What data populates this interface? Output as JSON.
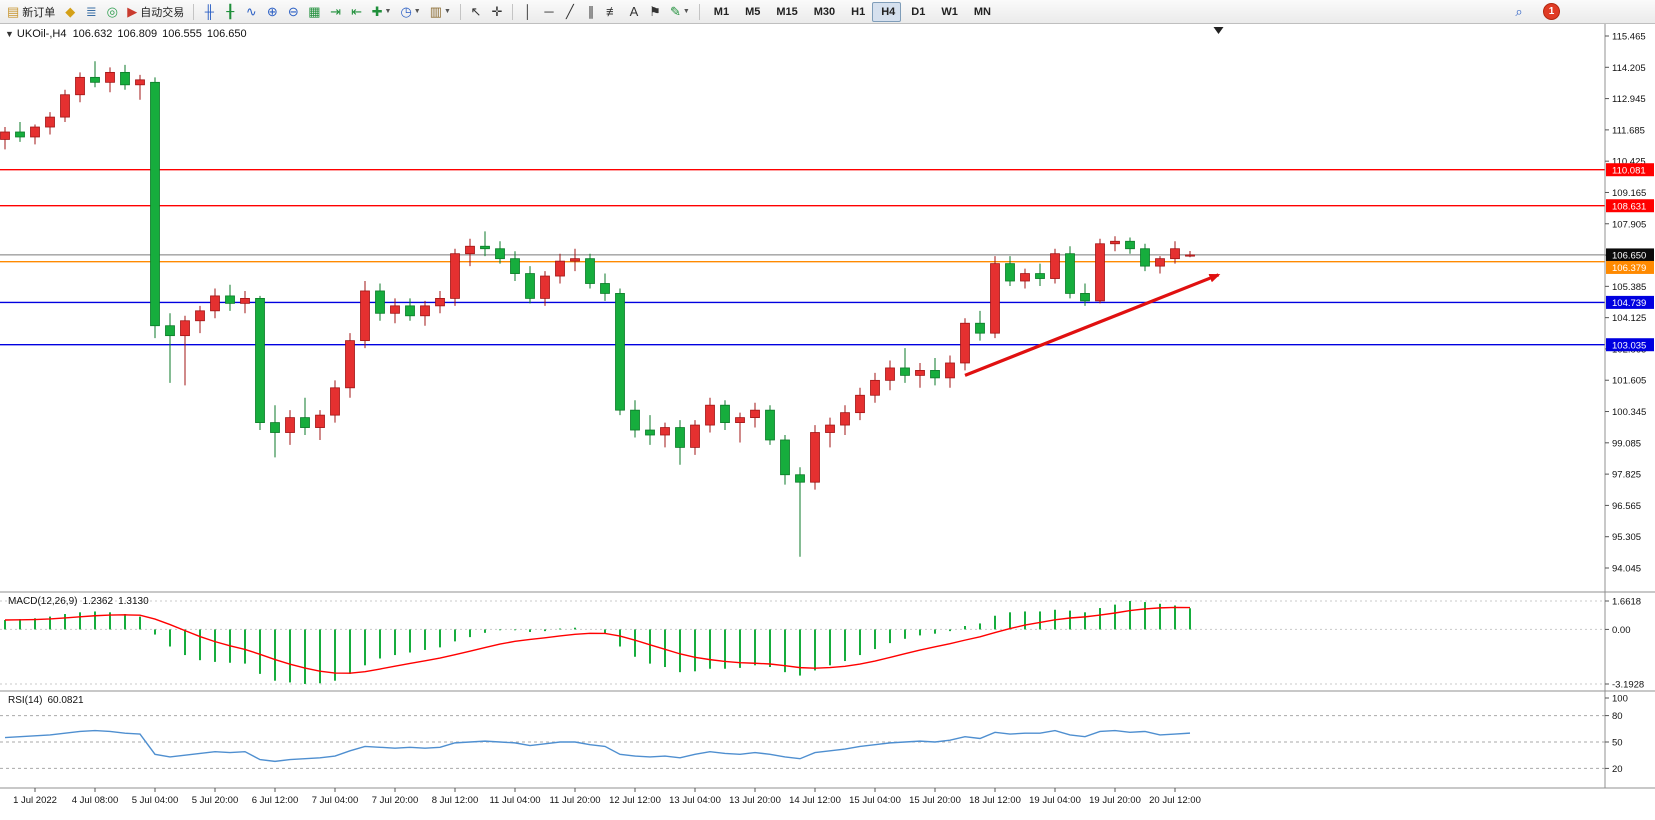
{
  "icons": {
    "one_click_toggle": "▼"
  },
  "toolbar": {
    "items": [
      {
        "name": "new-order-button",
        "glyph": "▤",
        "glyph_color": "#c89632",
        "label": "新订单"
      },
      {
        "name": "metaeditor-button",
        "glyph": "◆",
        "glyph_color": "#d4a017"
      },
      {
        "name": "market-watch-button",
        "glyph": "≣",
        "glyph_color": "#3a6ea5"
      },
      {
        "name": "navigator-button",
        "glyph": "◎",
        "glyph_color": "#2e9e4f"
      },
      {
        "name": "autotrading-button",
        "glyph": "▶",
        "glyph_color": "#c93a2e",
        "label": "自动交易"
      },
      {
        "sep": true
      },
      {
        "name": "bar-chart-button",
        "glyph": "╫",
        "glyph_color": "#2b5fc4"
      },
      {
        "name": "candlestick-chart-button",
        "glyph": "╂",
        "glyph_color": "#1f8f3a"
      },
      {
        "name": "line-chart-button",
        "glyph": "∿",
        "glyph_color": "#2b5fc4"
      },
      {
        "name": "zoom-in-button",
        "glyph": "⊕",
        "glyph_color": "#2b5fc4"
      },
      {
        "name": "zoom-out-button",
        "glyph": "⊖",
        "glyph_color": "#2b5fc4"
      },
      {
        "name": "tile-windows-button",
        "glyph": "▦",
        "glyph_color": "#1f8f3a"
      },
      {
        "name": "auto-scroll-button",
        "glyph": "⇥",
        "glyph_color": "#1f8f3a"
      },
      {
        "name": "chart-shift-button",
        "glyph": "⇤",
        "glyph_color": "#1f8f3a"
      },
      {
        "name": "indicators-button",
        "glyph": "✚",
        "glyph_color": "#1f8f3a",
        "caret": true
      },
      {
        "name": "periods-button",
        "glyph": "◷",
        "glyph_color": "#2b5fc4",
        "caret": true
      },
      {
        "name": "templates-button",
        "glyph": "▥",
        "glyph_color": "#8a6a30",
        "caret": true
      },
      {
        "sep": true
      },
      {
        "name": "cursor-button",
        "glyph": "↖",
        "glyph_color": "#333333"
      },
      {
        "name": "crosshair-button",
        "glyph": "✛",
        "glyph_color": "#333333"
      },
      {
        "sep": true
      },
      {
        "name": "vertical-line-button",
        "glyph": "│",
        "glyph_color": "#333333"
      },
      {
        "name": "horizontal-line-button",
        "glyph": "─",
        "glyph_color": "#333333"
      },
      {
        "name": "trendline-button",
        "glyph": "╱",
        "glyph_color": "#333333"
      },
      {
        "name": "equidistant-channel-button",
        "glyph": "∥",
        "glyph_color": "#333333"
      },
      {
        "name": "fibonacci-button",
        "glyph": "≢",
        "glyph_color": "#333333"
      },
      {
        "name": "text-button",
        "glyph": "A",
        "glyph_color": "#333333"
      },
      {
        "name": "arrows-button",
        "glyph": "⚑",
        "glyph_color": "#333333"
      },
      {
        "name": "draw-objects-button",
        "glyph": "✎",
        "glyph_color": "#1f8f3a",
        "caret": true
      },
      {
        "sep": true
      },
      {
        "name": "timeframe-m1-button",
        "label": "M1",
        "tf": true
      },
      {
        "name": "timeframe-m5-button",
        "label": "M5",
        "tf": true
      },
      {
        "name": "timeframe-m15-button",
        "label": "M15",
        "tf": true
      },
      {
        "name": "timeframe-m30-button",
        "label": "M30",
        "tf": true
      },
      {
        "name": "timeframe-h1-button",
        "label": "H1",
        "tf": true
      },
      {
        "name": "timeframe-h4-button",
        "label": "H4",
        "tf": true,
        "active": true
      },
      {
        "name": "timeframe-d1-button",
        "label": "D1",
        "tf": true
      },
      {
        "name": "timeframe-w1-button",
        "label": "W1",
        "tf": true
      },
      {
        "name": "timeframe-mn-button",
        "label": "MN",
        "tf": true
      }
    ],
    "right_items": [
      {
        "name": "search-button",
        "glyph": "⌕",
        "glyph_color": "#2b5fc4"
      },
      {
        "name": "notifications-button",
        "badge": "1"
      }
    ]
  },
  "chart": {
    "info": {
      "symbol": "UKOil-",
      "period": "H4",
      "open": "106.632",
      "high": "106.809",
      "low": "106.555",
      "close": "106.650"
    },
    "macd_label": {
      "name": "MACD(12,26,9)",
      "main_value": "1.2362",
      "signal_value": "1.3130"
    },
    "rsi_label": {
      "name": "RSI(14)",
      "value": "60.0821"
    }
  },
  "chart_data": [
    {
      "pane": "price",
      "type": "candlestick",
      "symbol": "UKOil-",
      "timeframe": "H4",
      "bull_color": "#e53030",
      "bear_color": "#16ad3d",
      "y_axis": {
        "min": 94.045,
        "max": 115.465,
        "ticks": [
          "115.465",
          "114.205",
          "112.945",
          "111.685",
          "110.425",
          "109.165",
          "107.905",
          "106.645",
          "105.385",
          "104.125",
          "102.865",
          "101.605",
          "100.345",
          "99.085",
          "97.825",
          "96.565",
          "95.305",
          "94.045"
        ]
      },
      "time_labels": {
        "indices": [
          2,
          6,
          10,
          14,
          18,
          22,
          26,
          30,
          34,
          38,
          42,
          46,
          50,
          54,
          58,
          62,
          66,
          70,
          74,
          78
        ],
        "texts": [
          "1 Jul 2022",
          "4 Jul 08:00",
          "5 Jul 04:00",
          "5 Jul 20:00",
          "6 Jul 12:00",
          "7 Jul 04:00",
          "7 Jul 20:00",
          "8 Jul 12:00",
          "11 Jul 04:00",
          "11 Jul 20:00",
          "12 Jul 12:00",
          "13 Jul 04:00",
          "13 Jul 20:00",
          "14 Jul 12:00",
          "15 Jul 04:00",
          "15 Jul 20:00",
          "18 Jul 12:00",
          "19 Jul 04:00",
          "19 Jul 20:00",
          "20 Jul 12:00"
        ]
      },
      "ohlc": [
        [
          111.3,
          111.8,
          110.9,
          111.6
        ],
        [
          111.6,
          112.0,
          111.2,
          111.4
        ],
        [
          111.4,
          111.9,
          111.1,
          111.8
        ],
        [
          111.8,
          112.4,
          111.5,
          112.2
        ],
        [
          112.2,
          113.3,
          112.0,
          113.1
        ],
        [
          113.1,
          114.0,
          112.8,
          113.8
        ],
        [
          113.8,
          114.45,
          113.4,
          113.6
        ],
        [
          113.6,
          114.2,
          113.2,
          114.0
        ],
        [
          114.0,
          114.3,
          113.3,
          113.5
        ],
        [
          113.5,
          113.9,
          112.9,
          113.7
        ],
        [
          113.6,
          113.8,
          103.3,
          103.8
        ],
        [
          103.8,
          104.3,
          101.5,
          103.4
        ],
        [
          103.4,
          104.2,
          101.4,
          104.0
        ],
        [
          104.0,
          104.6,
          103.5,
          104.4
        ],
        [
          104.4,
          105.3,
          104.1,
          105.0
        ],
        [
          105.0,
          105.45,
          104.4,
          104.7
        ],
        [
          104.7,
          105.2,
          104.3,
          104.9
        ],
        [
          104.9,
          105.0,
          99.6,
          99.9
        ],
        [
          99.9,
          100.6,
          98.5,
          99.5
        ],
        [
          99.5,
          100.4,
          99.0,
          100.1
        ],
        [
          100.1,
          100.9,
          99.4,
          99.7
        ],
        [
          99.7,
          100.4,
          99.2,
          100.2
        ],
        [
          100.2,
          101.6,
          99.9,
          101.3
        ],
        [
          101.3,
          103.5,
          100.9,
          103.2
        ],
        [
          103.2,
          105.6,
          102.9,
          105.2
        ],
        [
          105.2,
          105.5,
          104.0,
          104.3
        ],
        [
          104.3,
          104.9,
          103.9,
          104.6
        ],
        [
          104.6,
          104.9,
          104.0,
          104.2
        ],
        [
          104.2,
          104.8,
          103.8,
          104.6
        ],
        [
          104.6,
          105.2,
          104.3,
          104.9
        ],
        [
          104.9,
          106.9,
          104.6,
          106.7
        ],
        [
          106.7,
          107.3,
          106.2,
          107.0
        ],
        [
          107.0,
          107.6,
          106.6,
          106.9
        ],
        [
          106.9,
          107.2,
          106.3,
          106.5
        ],
        [
          106.5,
          106.8,
          105.6,
          105.9
        ],
        [
          105.9,
          106.2,
          104.7,
          104.9
        ],
        [
          104.9,
          106.0,
          104.6,
          105.8
        ],
        [
          105.8,
          106.7,
          105.5,
          106.4
        ],
        [
          106.4,
          106.9,
          106.0,
          106.5
        ],
        [
          106.5,
          106.7,
          105.3,
          105.5
        ],
        [
          105.5,
          105.9,
          104.8,
          105.1
        ],
        [
          105.1,
          105.3,
          100.2,
          100.4
        ],
        [
          100.4,
          100.8,
          99.3,
          99.6
        ],
        [
          99.6,
          100.2,
          99.0,
          99.4
        ],
        [
          99.4,
          99.9,
          98.9,
          99.7
        ],
        [
          99.7,
          100.0,
          98.2,
          98.9
        ],
        [
          98.9,
          100.0,
          98.6,
          99.8
        ],
        [
          99.8,
          100.9,
          99.5,
          100.6
        ],
        [
          100.6,
          100.8,
          99.6,
          99.9
        ],
        [
          99.9,
          100.3,
          99.1,
          100.1
        ],
        [
          100.1,
          100.7,
          99.7,
          100.4
        ],
        [
          100.4,
          100.6,
          99.0,
          99.2
        ],
        [
          99.2,
          99.4,
          97.4,
          97.8
        ],
        [
          97.8,
          98.1,
          94.5,
          97.5
        ],
        [
          97.5,
          99.8,
          97.2,
          99.5
        ],
        [
          99.5,
          100.1,
          98.9,
          99.8
        ],
        [
          99.8,
          100.6,
          99.4,
          100.3
        ],
        [
          100.3,
          101.3,
          100.0,
          101.0
        ],
        [
          101.0,
          101.9,
          100.7,
          101.6
        ],
        [
          101.6,
          102.4,
          101.2,
          102.1
        ],
        [
          102.1,
          102.9,
          101.5,
          101.8
        ],
        [
          101.8,
          102.3,
          101.3,
          102.0
        ],
        [
          102.0,
          102.5,
          101.4,
          101.7
        ],
        [
          101.7,
          102.6,
          101.3,
          102.3
        ],
        [
          102.3,
          104.1,
          102.0,
          103.9
        ],
        [
          103.9,
          104.4,
          103.2,
          103.5
        ],
        [
          103.5,
          106.6,
          103.3,
          106.3
        ],
        [
          106.3,
          106.6,
          105.4,
          105.6
        ],
        [
          105.6,
          106.1,
          105.3,
          105.9
        ],
        [
          105.9,
          106.3,
          105.4,
          105.7
        ],
        [
          105.7,
          106.9,
          105.5,
          106.7
        ],
        [
          106.7,
          107.0,
          104.9,
          105.1
        ],
        [
          105.1,
          105.5,
          104.6,
          104.8
        ],
        [
          104.8,
          107.3,
          104.7,
          107.1
        ],
        [
          107.1,
          107.4,
          106.8,
          107.2
        ],
        [
          107.2,
          107.35,
          106.7,
          106.9
        ],
        [
          106.9,
          107.1,
          106.0,
          106.2
        ],
        [
          106.2,
          106.6,
          105.9,
          106.5
        ],
        [
          106.5,
          107.2,
          106.3,
          106.9
        ],
        [
          106.632,
          106.809,
          106.555,
          106.65
        ]
      ],
      "hlines": [
        {
          "price": 110.081,
          "label": "110.081",
          "color": "#ff0000"
        },
        {
          "price": 108.631,
          "label": "108.631",
          "color": "#ff0000"
        },
        {
          "price": 106.379,
          "label": "106.379",
          "color": "#ff8a00"
        },
        {
          "price": 104.739,
          "label": "104.739",
          "color": "#0000e0"
        },
        {
          "price": 103.035,
          "label": "103.035",
          "color": "#0000e0"
        }
      ],
      "current_price": {
        "price": 106.65,
        "label": "106.650",
        "line_color": "#7a7a7a",
        "label_bg": "#0a0a0a"
      },
      "trend_arrow": {
        "from_index": 64.0,
        "from_price": 101.8,
        "to_index": 80.9,
        "to_price": 105.85,
        "color": "#e01010"
      }
    },
    {
      "pane": "macd",
      "type": "bar",
      "label": "MACD(12,26,9)",
      "histogram_color": "#16ad3d",
      "signal_color": "#ff0000",
      "signal_period": 9,
      "ticks": [
        "1.6618",
        "0.00",
        "-3.1928"
      ],
      "tick_values": [
        1.6618,
        0.0,
        -3.1928
      ],
      "ylim": [
        -3.1928,
        1.6618
      ],
      "main_value": 1.2362,
      "signal_value": 1.313,
      "histogram": [
        0.55,
        0.6,
        0.65,
        0.75,
        0.9,
        1.0,
        1.05,
        1.0,
        0.9,
        0.75,
        -0.3,
        -1.0,
        -1.5,
        -1.8,
        -1.9,
        -1.95,
        -2.0,
        -2.6,
        -3.0,
        -3.1,
        -3.19,
        -3.15,
        -3.0,
        -2.6,
        -2.1,
        -1.7,
        -1.5,
        -1.35,
        -1.2,
        -1.05,
        -0.7,
        -0.45,
        -0.2,
        -0.05,
        -0.05,
        -0.15,
        -0.1,
        0.05,
        0.1,
        0.0,
        -0.25,
        -1.0,
        -1.6,
        -2.0,
        -2.2,
        -2.5,
        -2.45,
        -2.3,
        -2.3,
        -2.25,
        -2.1,
        -2.2,
        -2.5,
        -2.7,
        -2.4,
        -2.1,
        -1.85,
        -1.5,
        -1.15,
        -0.8,
        -0.55,
        -0.35,
        -0.25,
        -0.1,
        0.2,
        0.35,
        0.8,
        1.0,
        1.05,
        1.05,
        1.15,
        1.1,
        1.0,
        1.25,
        1.45,
        1.6618,
        1.6,
        1.5,
        1.4,
        1.2362
      ]
    },
    {
      "pane": "rsi",
      "type": "line",
      "label": "RSI(14)",
      "line_color": "#4f8fd0",
      "levels": [
        80,
        50,
        20
      ],
      "ticks": [
        "100",
        "80",
        "50",
        "20"
      ],
      "tick_values": [
        100,
        80,
        50,
        20
      ],
      "ylim": [
        0,
        100
      ],
      "value": 60.0821,
      "values": [
        55,
        56,
        57,
        58,
        60,
        62,
        63,
        62,
        60,
        59,
        36,
        33,
        35,
        37,
        39,
        38,
        39,
        30,
        28,
        30,
        31,
        32,
        34,
        40,
        45,
        44,
        43,
        44,
        43,
        44,
        49,
        50,
        51,
        50,
        49,
        46,
        48,
        50,
        50,
        47,
        45,
        36,
        34,
        33,
        34,
        32,
        36,
        39,
        37,
        36,
        38,
        36,
        33,
        31,
        38,
        40,
        42,
        45,
        47,
        49,
        50,
        51,
        50,
        52,
        56,
        54,
        61,
        59,
        60,
        60,
        63,
        58,
        56,
        62,
        63,
        61,
        62,
        58,
        59,
        60.08
      ]
    }
  ]
}
